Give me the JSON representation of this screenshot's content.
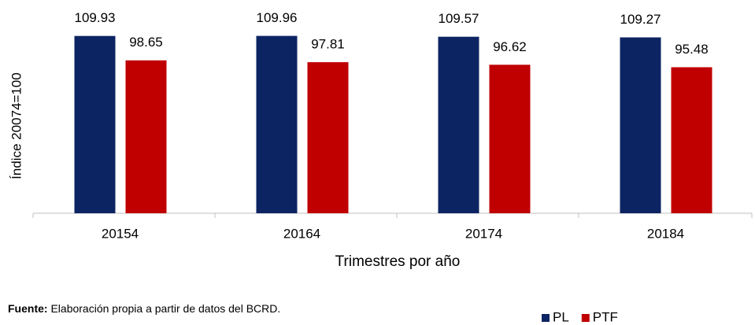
{
  "chart_data": {
    "type": "bar",
    "y_axis_label": "Índice 20074=100",
    "x_axis_label": "Trimestres por año",
    "categories": [
      "20154",
      "20164",
      "20174",
      "20184"
    ],
    "series": [
      {
        "name": "PL",
        "color": "#0d2463",
        "values": [
          109.93,
          109.96,
          109.57,
          109.27
        ]
      },
      {
        "name": "PTF",
        "color": "#c00000",
        "values": [
          98.65,
          97.81,
          96.62,
          95.48
        ]
      }
    ],
    "ylim": [
      28,
      115
    ],
    "legend": "bottom-right",
    "source_label": "Fuente:",
    "source_text": "Elaboración propia a partir de datos del BCRD."
  }
}
